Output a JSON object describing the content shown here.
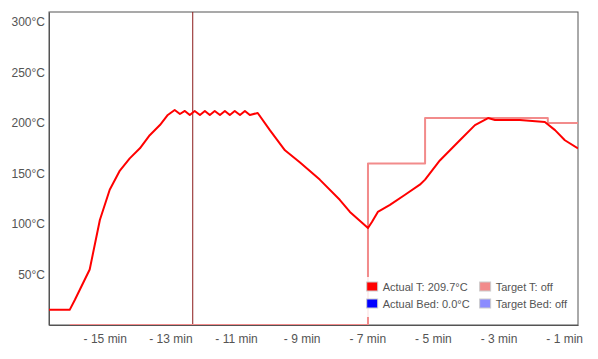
{
  "chart_data": {
    "type": "line",
    "xlim": [
      -16.7,
      -0.58
    ],
    "xticks": [
      {
        "value": -15,
        "label": "- 15 min"
      },
      {
        "value": -13,
        "label": "- 13 min"
      },
      {
        "value": -11,
        "label": "- 11 min"
      },
      {
        "value": -9,
        "label": "- 9 min"
      },
      {
        "value": -7,
        "label": "- 7 min"
      },
      {
        "value": -5,
        "label": "- 5 min"
      },
      {
        "value": -3,
        "label": "- 3 min"
      },
      {
        "value": -1,
        "label": "- 1 min"
      }
    ],
    "ylim": [
      0,
      310
    ],
    "yticks": [
      {
        "value": 50,
        "label": "50°C"
      },
      {
        "value": 100,
        "label": "100°C"
      },
      {
        "value": 150,
        "label": "150°C"
      },
      {
        "value": 200,
        "label": "200°C"
      },
      {
        "value": 250,
        "label": "250°C"
      },
      {
        "value": 300,
        "label": "300°C"
      }
    ],
    "grid": false,
    "legend": "bottom-right",
    "vlines": [
      -12.32
    ],
    "series": [
      {
        "name": "Actual T: 209.7°C",
        "color": "#ff0000",
        "line_style": "solid",
        "x": [
          -16.7,
          -16.07,
          -15.91,
          -15.46,
          -15.15,
          -14.85,
          -14.54,
          -14.24,
          -13.93,
          -13.63,
          -13.32,
          -13.08,
          -12.87,
          -12.71,
          -12.56,
          -12.41,
          -12.26,
          -12.1,
          -11.95,
          -11.8,
          -11.65,
          -11.49,
          -11.34,
          -11.19,
          -11.04,
          -10.88,
          -10.73,
          -10.58,
          -10.34,
          -9.97,
          -9.51,
          -9.05,
          -8.45,
          -7.84,
          -7.53,
          -6.98,
          -6.86,
          -6.68,
          -6.31,
          -5.85,
          -5.4,
          -5.24,
          -4.79,
          -4.18,
          -3.72,
          -3.32,
          -3.11,
          -2.35,
          -1.59,
          -1.28,
          -0.98,
          -0.58
        ],
        "values": [
          15,
          15,
          25,
          55,
          104,
          134,
          153,
          165,
          175,
          188,
          198,
          208,
          213,
          209,
          212,
          208,
          212,
          208,
          212,
          208,
          212,
          208,
          212,
          208,
          212,
          208,
          212,
          208,
          210,
          193,
          173,
          161,
          144,
          124,
          112,
          96,
          102,
          112,
          119,
          129,
          139,
          144,
          163,
          183,
          198,
          205,
          203,
          203,
          201,
          193,
          183,
          175
        ]
      },
      {
        "name": "Actual Bed: 0.0°C",
        "color": "#0000ff",
        "line_style": "solid",
        "x": [
          -16.7,
          -0.58
        ],
        "values": [
          null,
          null
        ]
      },
      {
        "name": "Target T: off",
        "color": "#f28b8b",
        "line_style": "step",
        "x": [
          -16.07,
          -6.98,
          -5.24,
          -1.5,
          -0.58
        ],
        "values": [
          0,
          160,
          205,
          200,
          200
        ]
      },
      {
        "name": "Target Bed: off",
        "color": "#8c8cff",
        "line_style": "step",
        "x": [
          -16.7,
          -0.58
        ],
        "values": [
          null,
          null
        ]
      }
    ]
  }
}
